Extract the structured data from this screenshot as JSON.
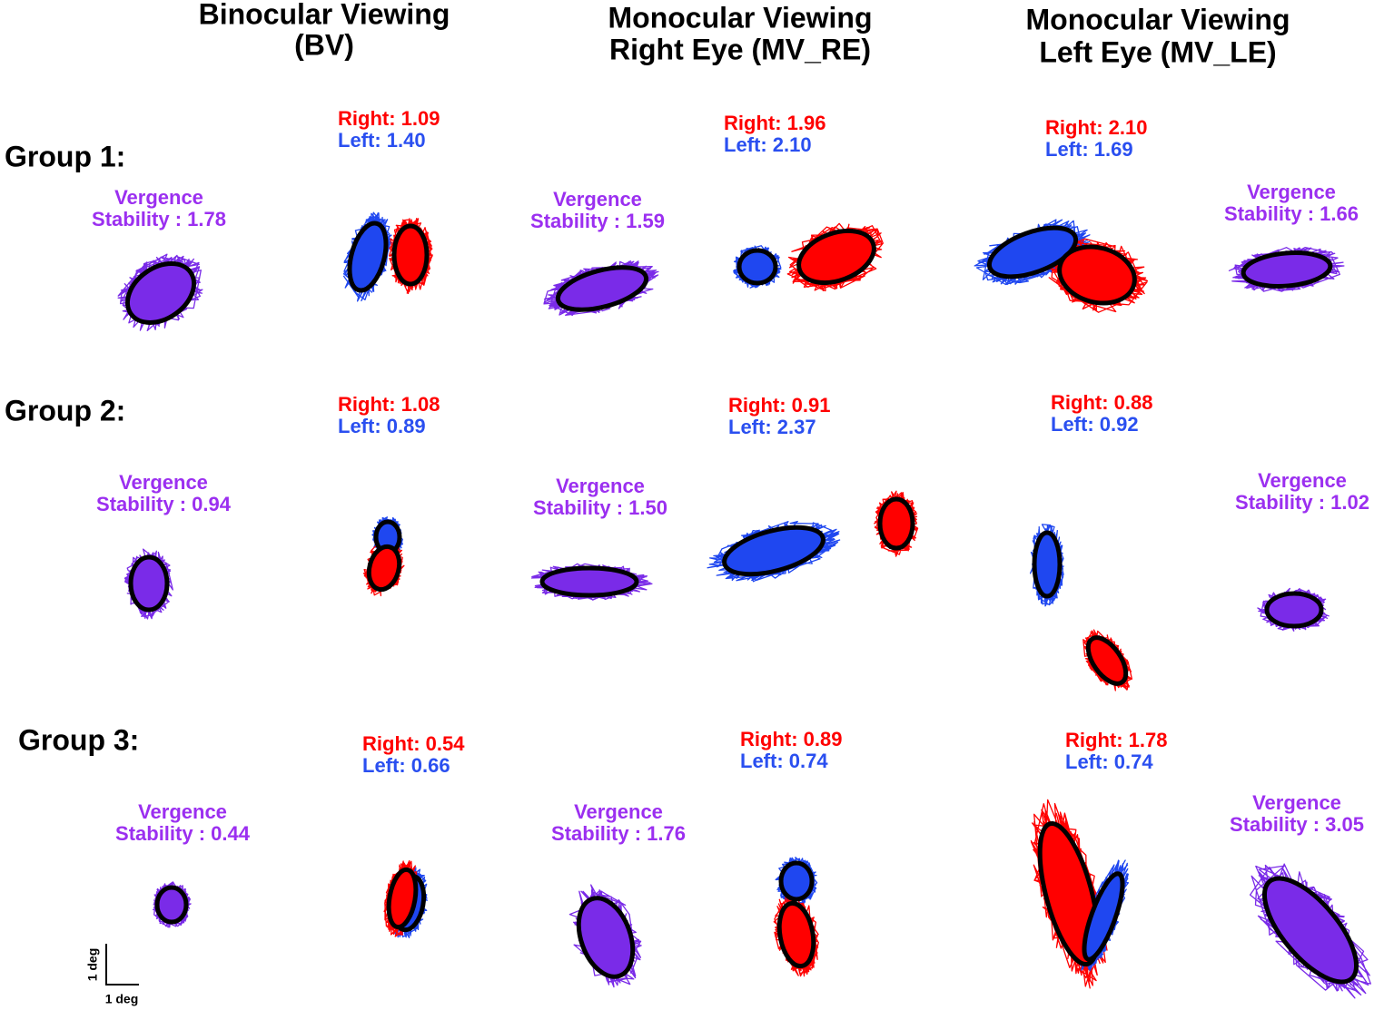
{
  "headers": [
    [
      "Binocular Viewing",
      "(BV)"
    ],
    [
      "Monocular Viewing",
      "Right Eye (MV_RE)"
    ],
    [
      "Monocular Viewing",
      "Left Eye (MV_LE)"
    ]
  ],
  "groups": [
    {
      "label": "Group 1:",
      "panels": [
        {
          "vergence": [
            "Vergence",
            "Stability : 1.78"
          ],
          "right": "Right: 1.09",
          "left": "Left: 1.40"
        },
        {
          "vergence": [
            "Vergence",
            "Stability : 1.59"
          ],
          "right": "Right: 1.96",
          "left": "Left: 2.10"
        },
        {
          "vergence": [
            "Vergence",
            "Stability : 1.66"
          ],
          "right": "Right: 2.10",
          "left": "Left: 1.69"
        }
      ]
    },
    {
      "label": "Group 2:",
      "panels": [
        {
          "vergence": [
            "Vergence",
            "Stability : 0.94"
          ],
          "right": "Right: 1.08",
          "left": "Left: 0.89"
        },
        {
          "vergence": [
            "Vergence",
            "Stability : 1.50"
          ],
          "right": "Right: 0.91",
          "left": "Left: 2.37"
        },
        {
          "vergence": [
            "Vergence",
            "Stability : 1.02"
          ],
          "right": "Right: 0.88",
          "left": "Left: 0.92"
        }
      ]
    },
    {
      "label": "Group 3:",
      "panels": [
        {
          "vergence": [
            "Vergence",
            "Stability : 0.44"
          ],
          "right": "Right: 0.54",
          "left": "Left: 0.66"
        },
        {
          "vergence": [
            "Vergence",
            "Stability : 1.76"
          ],
          "right": "Right: 0.89",
          "left": "Left: 0.74"
        },
        {
          "vergence": [
            "Vergence",
            "Stability : 3.05"
          ],
          "right": "Right: 1.78",
          "left": "Left: 0.74"
        }
      ]
    }
  ],
  "scale_bar": {
    "vertical": "1 deg",
    "horizontal": "1 deg"
  }
}
